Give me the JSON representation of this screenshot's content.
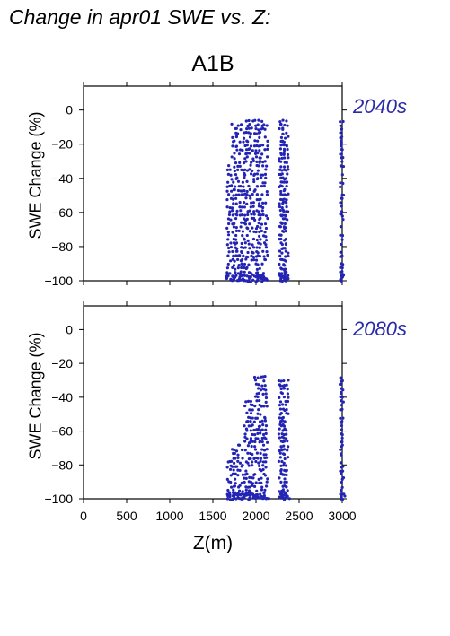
{
  "title": "Change in apr01 SWE vs. Z:",
  "scenario": "A1B",
  "colors": {
    "points": "#2424b4",
    "period_label": "#2a2aa8",
    "axes": "#000000"
  },
  "chart_data": [
    {
      "type": "scatter",
      "period": "2040s",
      "ylabel": "SWE Change (%)",
      "xlabel": "",
      "xlim": [
        0,
        3000
      ],
      "ylim": [
        -100,
        14
      ],
      "yticks": [
        0,
        -20,
        -40,
        -60,
        -80,
        -100
      ],
      "ytick_labels": [
        "0",
        "−20",
        "−40",
        "−60",
        "−80",
        "−100"
      ],
      "columns": [
        {
          "x": [
            1670,
            1700
          ],
          "y_range": [
            -100,
            -32
          ]
        },
        {
          "x": [
            1730,
            1760,
            1790,
            1820,
            1850
          ],
          "y_range": [
            -100,
            -8
          ]
        },
        {
          "x": [
            1880,
            1910,
            1940,
            1970
          ],
          "y_range": [
            -100,
            -4
          ]
        },
        {
          "x": [
            2000,
            2030,
            2060,
            2090,
            2120
          ],
          "y_range": [
            -100,
            -5
          ]
        },
        {
          "x": [
            2280,
            2300,
            2320,
            2340,
            2360
          ],
          "y_range": [
            -100,
            -6
          ]
        },
        {
          "x": [
            2990,
            3000
          ],
          "y_range": [
            -100,
            -5
          ]
        }
      ]
    },
    {
      "type": "scatter",
      "period": "2080s",
      "ylabel": "SWE Change (%)",
      "xlabel": "Z(m)",
      "xlim": [
        0,
        3000
      ],
      "ylim": [
        -100,
        14
      ],
      "xticks": [
        0,
        500,
        1000,
        1500,
        2000,
        2500,
        3000
      ],
      "xtick_labels": [
        "0",
        "500",
        "1000",
        "1500",
        "2000",
        "2500",
        "3000"
      ],
      "yticks": [
        0,
        -20,
        -40,
        -60,
        -80,
        -100
      ],
      "ytick_labels": [
        "0",
        "−20",
        "−40",
        "−60",
        "−80",
        "−100"
      ],
      "columns": [
        {
          "x": [
            1670,
            1700
          ],
          "y_range": [
            -100,
            -78
          ]
        },
        {
          "x": [
            1730,
            1760,
            1790,
            1820,
            1850
          ],
          "y_range": [
            -100,
            -68
          ]
        },
        {
          "x": [
            1880,
            1910,
            1940,
            1970
          ],
          "y_range": [
            -100,
            -41
          ]
        },
        {
          "x": [
            2000,
            2030,
            2060,
            2090,
            2120
          ],
          "y_range": [
            -100,
            -27
          ]
        },
        {
          "x": [
            2280,
            2300,
            2320,
            2340,
            2360
          ],
          "y_range": [
            -100,
            -28
          ]
        },
        {
          "x": [
            2990,
            3000
          ],
          "y_range": [
            -100,
            -27
          ]
        }
      ]
    }
  ]
}
